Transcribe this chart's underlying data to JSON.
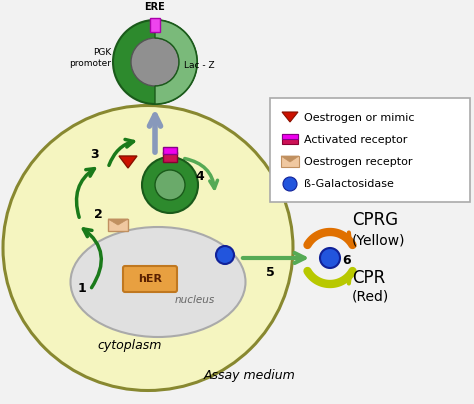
{
  "bg_color": "#f2f2f2",
  "cytoplasm_color": "#f5f5c0",
  "cytoplasm_edge_color": "#888830",
  "nucleus_color": "#e0e0e0",
  "nucleus_edge_color": "#aaaaaa",
  "plasmid_green_dark": "#2d8a2d",
  "plasmid_green_light": "#7aba7a",
  "plasmid_grey": "#909090",
  "ere_magenta": "#cc00cc",
  "arrow_green_dark": "#1a7a1a",
  "arrow_green_light": "#55aa55",
  "arrow_blue_grey": "#8899bb",
  "cprg_yellow": "#b8c000",
  "cpr_orange": "#e07000",
  "blue_dot": "#2255dd",
  "her_box_face": "#e8a040",
  "her_box_edge": "#c07820",
  "red_triangle": "#cc1100",
  "activated_red": "#cc1155",
  "activated_magenta": "#ee00ee",
  "oestrogen_rect_face": "#f0c8a0",
  "oestrogen_rect_edge": "#c09060",
  "legend_face": "#ffffff",
  "legend_edge": "#aaaaaa",
  "text_black": "#000000",
  "text_grey": "#666666",
  "cytoplasm_label": "cytoplasm",
  "nucleus_label": "nucleus",
  "her_label": "hER",
  "ere_label": "ERE",
  "pgk_label": "PGK\npromoter",
  "lacz_label": "Lac - Z",
  "cprg_label": "CPRG",
  "yellow_label": "(Yellow)",
  "cpr_label": "CPR",
  "red_label": "(Red)",
  "assay_label": "Assay medium",
  "step_labels": [
    "1",
    "2",
    "3",
    "4",
    "5",
    "6"
  ],
  "legend_labels": [
    "Oestrogen or mimic",
    "Activated receptor",
    "Oestrogen receptor",
    "ß-Galactosidase"
  ]
}
